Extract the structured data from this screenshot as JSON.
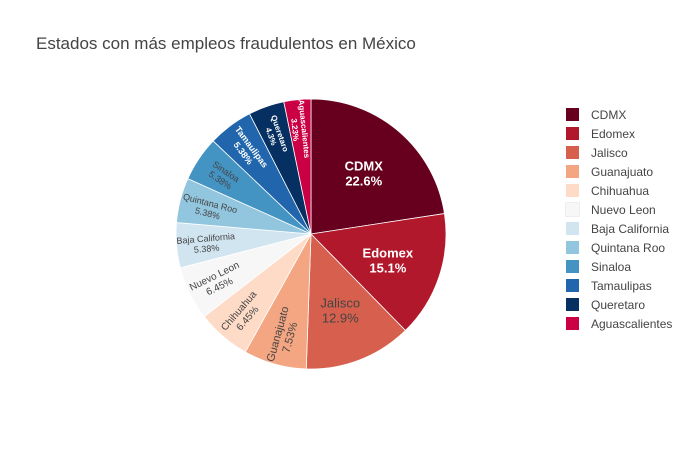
{
  "chart_data": {
    "type": "pie",
    "title": "Estados con más empleos fraudulentos en México",
    "categories": [
      "CDMX",
      "Edomex",
      "Jalisco",
      "Guanajuato",
      "Chihuahua",
      "Nuevo Leon",
      "Baja California",
      "Quintana Roo",
      "Sinaloa",
      "Tamaulipas",
      "Queretaro",
      "Aguascalientes"
    ],
    "values": [
      22.6,
      15.1,
      12.9,
      7.53,
      6.45,
      6.45,
      5.38,
      5.38,
      5.38,
      5.38,
      4.3,
      3.23
    ],
    "labels": [
      "22.6%",
      "15.1%",
      "12.9%",
      "7.53%",
      "6.45%",
      "6.45%",
      "5.38%",
      "5.38%",
      "5.38%",
      "5.38%",
      "4.3%",
      "3.23%"
    ],
    "colors": [
      "#67001f",
      "#b2182b",
      "#d6604d",
      "#f4a582",
      "#fddbc7",
      "#f7f7f7",
      "#d1e5f0",
      "#92c5de",
      "#4393c3",
      "#2166ac",
      "#053061",
      "#cb0044"
    ],
    "legend_position": "right",
    "direction": "clockwise",
    "start": "top"
  }
}
